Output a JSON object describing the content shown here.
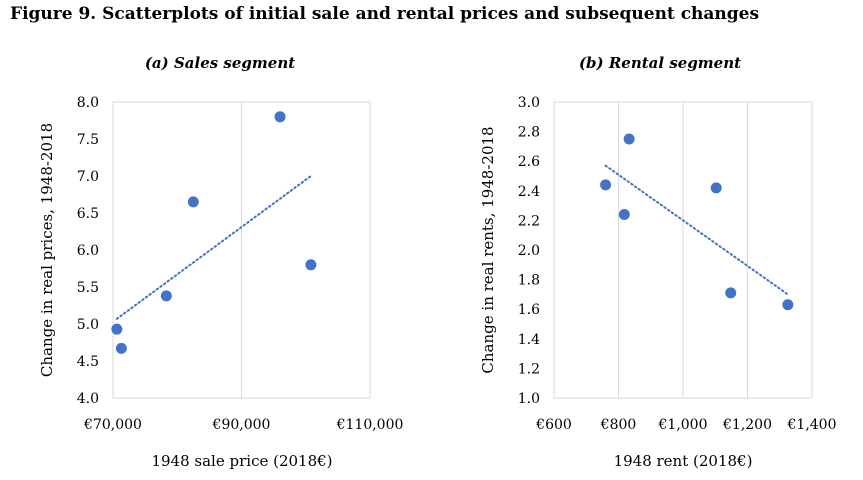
{
  "figure_title": "Figure 9. Scatterplots of initial sale and rental prices and subsequent changes",
  "chart_data": [
    {
      "type": "scatter",
      "title": "(a) Sales segment",
      "xlabel": "1948 sale price (2018€)",
      "ylabel": "Change in real prices, 1948-2018",
      "xlim": [
        70000,
        110000
      ],
      "ylim": [
        4.0,
        8.0
      ],
      "xticks": [
        70000,
        90000,
        110000
      ],
      "xtick_labels": [
        "€70,000",
        "€90,000",
        "€110,000"
      ],
      "yticks": [
        4.0,
        4.5,
        5.0,
        5.5,
        6.0,
        6.5,
        7.0,
        7.5,
        8.0
      ],
      "ytick_labels": [
        "4.0",
        "4.5",
        "5.0",
        "5.5",
        "6.0",
        "6.5",
        "7.0",
        "7.5",
        "8.0"
      ],
      "grid": "vertical",
      "points": [
        {
          "x": 70600,
          "y": 4.93
        },
        {
          "x": 71300,
          "y": 4.67
        },
        {
          "x": 78300,
          "y": 5.38
        },
        {
          "x": 82500,
          "y": 6.65
        },
        {
          "x": 96000,
          "y": 7.8
        },
        {
          "x": 100800,
          "y": 5.8
        }
      ],
      "trendline": {
        "style": "dotted",
        "x": [
          70600,
          100800
        ],
        "y": [
          5.07,
          7.0
        ]
      },
      "marker_color": "#4472C4",
      "trend_color": "#4472C4"
    },
    {
      "type": "scatter",
      "title": "(b) Rental segment",
      "xlabel": "1948 rent (2018€)",
      "ylabel": "Change in real rents, 1948-2018",
      "xlim": [
        600,
        1400
      ],
      "ylim": [
        1.0,
        3.0
      ],
      "xticks": [
        600,
        800,
        1000,
        1200,
        1400
      ],
      "xtick_labels": [
        "€600",
        "€800",
        "€1,000",
        "€1,200",
        "€1,400"
      ],
      "yticks": [
        1.0,
        1.2,
        1.4,
        1.6,
        1.8,
        2.0,
        2.2,
        2.4,
        2.6,
        2.8,
        3.0
      ],
      "ytick_labels": [
        "1.0",
        "1.2",
        "1.4",
        "1.6",
        "1.8",
        "2.0",
        "2.2",
        "2.4",
        "2.6",
        "2.8",
        "3.0"
      ],
      "grid": "vertical",
      "points": [
        {
          "x": 760,
          "y": 2.44
        },
        {
          "x": 818,
          "y": 2.24
        },
        {
          "x": 833,
          "y": 2.75
        },
        {
          "x": 1103,
          "y": 2.42
        },
        {
          "x": 1148,
          "y": 1.71
        },
        {
          "x": 1325,
          "y": 1.63
        }
      ],
      "trendline": {
        "style": "dotted",
        "x": [
          760,
          1325
        ],
        "y": [
          2.57,
          1.7
        ]
      },
      "marker_color": "#4472C4",
      "trend_color": "#4472C4"
    }
  ]
}
